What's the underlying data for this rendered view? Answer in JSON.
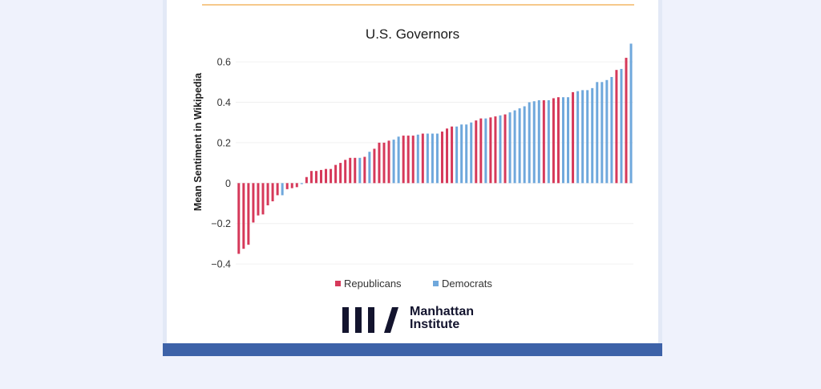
{
  "chart_data": {
    "type": "bar",
    "title": "U.S. Governors",
    "xlabel": "",
    "ylabel": "Mean Sentiment in Wikipedia",
    "ylim": [
      -0.4,
      0.7
    ],
    "yticks": [
      -0.4,
      -0.2,
      0,
      0.2,
      0.4,
      0.6
    ],
    "ytick_labels": [
      "−0.4",
      "−0.2",
      "0",
      "0.2",
      "0.4",
      "0.6"
    ],
    "grid": true,
    "legend_position": "bottom-center",
    "series": [
      {
        "name": "Republicans",
        "color": "#d6395a"
      },
      {
        "name": "Democrats",
        "color": "#6fa8dc"
      }
    ],
    "bars": [
      {
        "party": "Republicans",
        "value": -0.35
      },
      {
        "party": "Republicans",
        "value": -0.325
      },
      {
        "party": "Republicans",
        "value": -0.305
      },
      {
        "party": "Republicans",
        "value": -0.195
      },
      {
        "party": "Republicans",
        "value": -0.16
      },
      {
        "party": "Republicans",
        "value": -0.155
      },
      {
        "party": "Republicans",
        "value": -0.11
      },
      {
        "party": "Republicans",
        "value": -0.09
      },
      {
        "party": "Republicans",
        "value": -0.06
      },
      {
        "party": "Democrats",
        "value": -0.06
      },
      {
        "party": "Republicans",
        "value": -0.03
      },
      {
        "party": "Republicans",
        "value": -0.025
      },
      {
        "party": "Republicans",
        "value": -0.02
      },
      {
        "party": "Democrats",
        "value": -0.005
      },
      {
        "party": "Republicans",
        "value": 0.03
      },
      {
        "party": "Republicans",
        "value": 0.06
      },
      {
        "party": "Republicans",
        "value": 0.06
      },
      {
        "party": "Republicans",
        "value": 0.065
      },
      {
        "party": "Republicans",
        "value": 0.07
      },
      {
        "party": "Republicans",
        "value": 0.07
      },
      {
        "party": "Republicans",
        "value": 0.09
      },
      {
        "party": "Republicans",
        "value": 0.1
      },
      {
        "party": "Republicans",
        "value": 0.115
      },
      {
        "party": "Republicans",
        "value": 0.125
      },
      {
        "party": "Republicans",
        "value": 0.125
      },
      {
        "party": "Democrats",
        "value": 0.125
      },
      {
        "party": "Republicans",
        "value": 0.13
      },
      {
        "party": "Democrats",
        "value": 0.155
      },
      {
        "party": "Republicans",
        "value": 0.17
      },
      {
        "party": "Republicans",
        "value": 0.2
      },
      {
        "party": "Republicans",
        "value": 0.2
      },
      {
        "party": "Republicans",
        "value": 0.21
      },
      {
        "party": "Democrats",
        "value": 0.215
      },
      {
        "party": "Democrats",
        "value": 0.23
      },
      {
        "party": "Republicans",
        "value": 0.235
      },
      {
        "party": "Republicans",
        "value": 0.235
      },
      {
        "party": "Republicans",
        "value": 0.235
      },
      {
        "party": "Democrats",
        "value": 0.24
      },
      {
        "party": "Republicans",
        "value": 0.245
      },
      {
        "party": "Democrats",
        "value": 0.245
      },
      {
        "party": "Democrats",
        "value": 0.245
      },
      {
        "party": "Democrats",
        "value": 0.245
      },
      {
        "party": "Republicans",
        "value": 0.255
      },
      {
        "party": "Republicans",
        "value": 0.27
      },
      {
        "party": "Republicans",
        "value": 0.28
      },
      {
        "party": "Democrats",
        "value": 0.28
      },
      {
        "party": "Democrats",
        "value": 0.29
      },
      {
        "party": "Democrats",
        "value": 0.29
      },
      {
        "party": "Democrats",
        "value": 0.3
      },
      {
        "party": "Republicans",
        "value": 0.31
      },
      {
        "party": "Republicans",
        "value": 0.32
      },
      {
        "party": "Democrats",
        "value": 0.32
      },
      {
        "party": "Republicans",
        "value": 0.325
      },
      {
        "party": "Republicans",
        "value": 0.33
      },
      {
        "party": "Democrats",
        "value": 0.335
      },
      {
        "party": "Republicans",
        "value": 0.34
      },
      {
        "party": "Democrats",
        "value": 0.35
      },
      {
        "party": "Democrats",
        "value": 0.36
      },
      {
        "party": "Democrats",
        "value": 0.37
      },
      {
        "party": "Democrats",
        "value": 0.38
      },
      {
        "party": "Democrats",
        "value": 0.4
      },
      {
        "party": "Democrats",
        "value": 0.405
      },
      {
        "party": "Democrats",
        "value": 0.41
      },
      {
        "party": "Republicans",
        "value": 0.41
      },
      {
        "party": "Democrats",
        "value": 0.41
      },
      {
        "party": "Republicans",
        "value": 0.42
      },
      {
        "party": "Republicans",
        "value": 0.425
      },
      {
        "party": "Democrats",
        "value": 0.425
      },
      {
        "party": "Democrats",
        "value": 0.425
      },
      {
        "party": "Republicans",
        "value": 0.45
      },
      {
        "party": "Democrats",
        "value": 0.455
      },
      {
        "party": "Democrats",
        "value": 0.46
      },
      {
        "party": "Democrats",
        "value": 0.46
      },
      {
        "party": "Democrats",
        "value": 0.47
      },
      {
        "party": "Democrats",
        "value": 0.5
      },
      {
        "party": "Democrats",
        "value": 0.5
      },
      {
        "party": "Democrats",
        "value": 0.51
      },
      {
        "party": "Democrats",
        "value": 0.525
      },
      {
        "party": "Republicans",
        "value": 0.56
      },
      {
        "party": "Democrats",
        "value": 0.565
      },
      {
        "party": "Republicans",
        "value": 0.62
      },
      {
        "party": "Democrats",
        "value": 0.69
      }
    ]
  },
  "legend": {
    "items": [
      {
        "label": "Republicans",
        "color": "#d6395a"
      },
      {
        "label": "Democrats",
        "color": "#6fa8dc"
      }
    ]
  },
  "logo": {
    "line1": "Manhattan",
    "line2": "Institute",
    "color": "#13142e"
  },
  "colors": {
    "background": "#eff2fc",
    "accent_line": "#f6c98c",
    "footer_bar": "#3d62a8"
  }
}
